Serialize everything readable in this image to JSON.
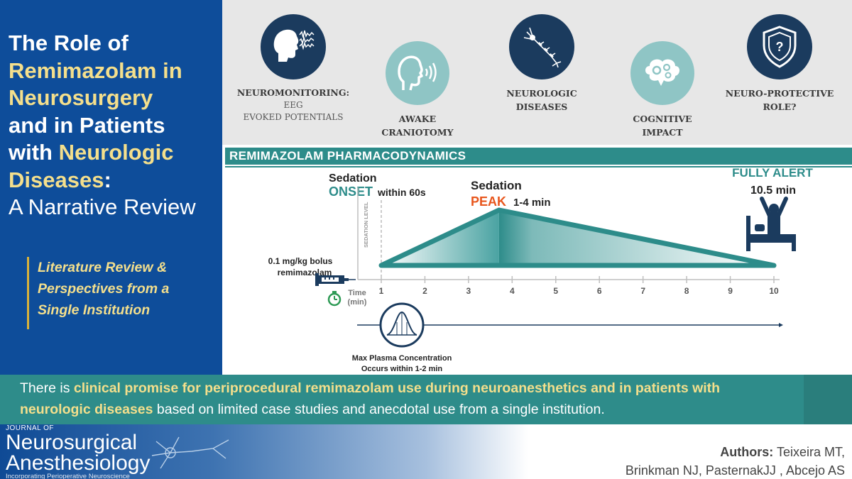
{
  "title": {
    "line1": "The Role of",
    "line2": "Remimazolam in",
    "line3": "Neurosurgery",
    "line4": "and in Patients",
    "line5_a": "with ",
    "line5_b": "Neurologic",
    "line6_a": "Diseases",
    "line6_b": ":",
    "line7": "A Narrative Review"
  },
  "side_note": [
    "Literature Review &",
    "Perspectives from a",
    "Single Institution"
  ],
  "topics": [
    {
      "label_bold": "NEUROMONITORING:",
      "label_lines": [
        "EEG",
        "EVOKED POTENTIALS"
      ],
      "icon": "head-eeg-icon"
    },
    {
      "label_bold_lines": [
        "AWAKE",
        "CRANIOTOMY"
      ],
      "icon": "speaking-head-icon"
    },
    {
      "label_bold_lines": [
        "NEUROLOGIC",
        "DISEASES"
      ],
      "icon": "neuron-icon"
    },
    {
      "label_bold_lines": [
        "COGNITIVE",
        "IMPACT"
      ],
      "icon": "brain-gears-icon"
    },
    {
      "label_bold_lines": [
        "NEURO-PROTECTIVE",
        "ROLE?"
      ],
      "icon": "shield-question-icon"
    }
  ],
  "pharmacodynamics": {
    "header": "REMIMAZOLAM PHARMACODYNAMICS",
    "onset_label": "Sedation",
    "onset_keyword": "ONSET",
    "onset_detail": "within 60s",
    "peak_label": "Sedation",
    "peak_keyword": "PEAK",
    "peak_detail": "1-4 min",
    "alert_keyword": "FULLY ALERT",
    "alert_detail": "10.5 min",
    "y_axis_label": "SEDATION LEVEL",
    "bolus_line1": "0.1 mg/kg bolus",
    "bolus_line2": "remimazolam",
    "time_label_line1": "Time",
    "time_label_line2": "(min)",
    "ticks": [
      "1",
      "2",
      "3",
      "4",
      "5",
      "6",
      "7",
      "8",
      "9",
      "10"
    ],
    "plasma_line1": "Max Plasma Concentration",
    "plasma_line2": "Occurs within 1-2 min"
  },
  "chart_data": {
    "type": "area",
    "x": [
      1,
      3.7,
      10
    ],
    "values": [
      0,
      1,
      0
    ],
    "xlabel": "Time (min)",
    "ylabel": "SEDATION LEVEL",
    "xlim": [
      1,
      10
    ],
    "grid": false
  },
  "conclusion": {
    "part1": "There is ",
    "highlight1": "clinical promise for periprocedural remimazolam use during neuroanesthetics and in patients with",
    "highlight2": "neurologic diseases",
    "part2": " based on limited case studies and anecdotal use from a single institution."
  },
  "journal": {
    "small": "JOURNAL OF",
    "name_line1": "Neurosurgical",
    "name_line2": "Anesthesiology",
    "tagline": "Incorporating Perioperative Neuroscience"
  },
  "authors": {
    "label": "Authors",
    "line1": "Teixeira MT,",
    "line2": "Brinkman NJ, PasternakJJ , Abcejo AS"
  },
  "colors": {
    "navy": "#0e4d9a",
    "teal": "#2d8c8a",
    "highlight": "#f4df8c",
    "peak_orange": "#e8561c"
  }
}
